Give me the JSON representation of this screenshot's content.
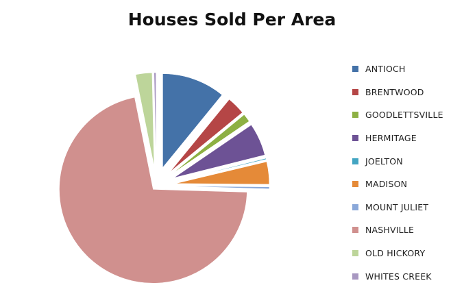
{
  "chart_data": {
    "type": "pie",
    "title": "Houses Sold Per Area",
    "exploded": true,
    "legend_position": "right",
    "categories": [
      "ANTIOCH",
      "BRENTWOOD",
      "GOODLETTSVILLE",
      "HERMITAGE",
      "JOELTON",
      "MADISON",
      "MOUNT JULIET",
      "NASHVILLE",
      "OLD HICKORY",
      "WHITES CREEK"
    ],
    "values": [
      31,
      9,
      4,
      16,
      0.5,
      11,
      1,
      203,
      8,
      1
    ],
    "colors": [
      "#4472A8",
      "#B54646",
      "#8DB043",
      "#6D5295",
      "#43A5C2",
      "#E58A38",
      "#8AA8D9",
      "#D0908E",
      "#BDD59A",
      "#A898C1"
    ]
  }
}
